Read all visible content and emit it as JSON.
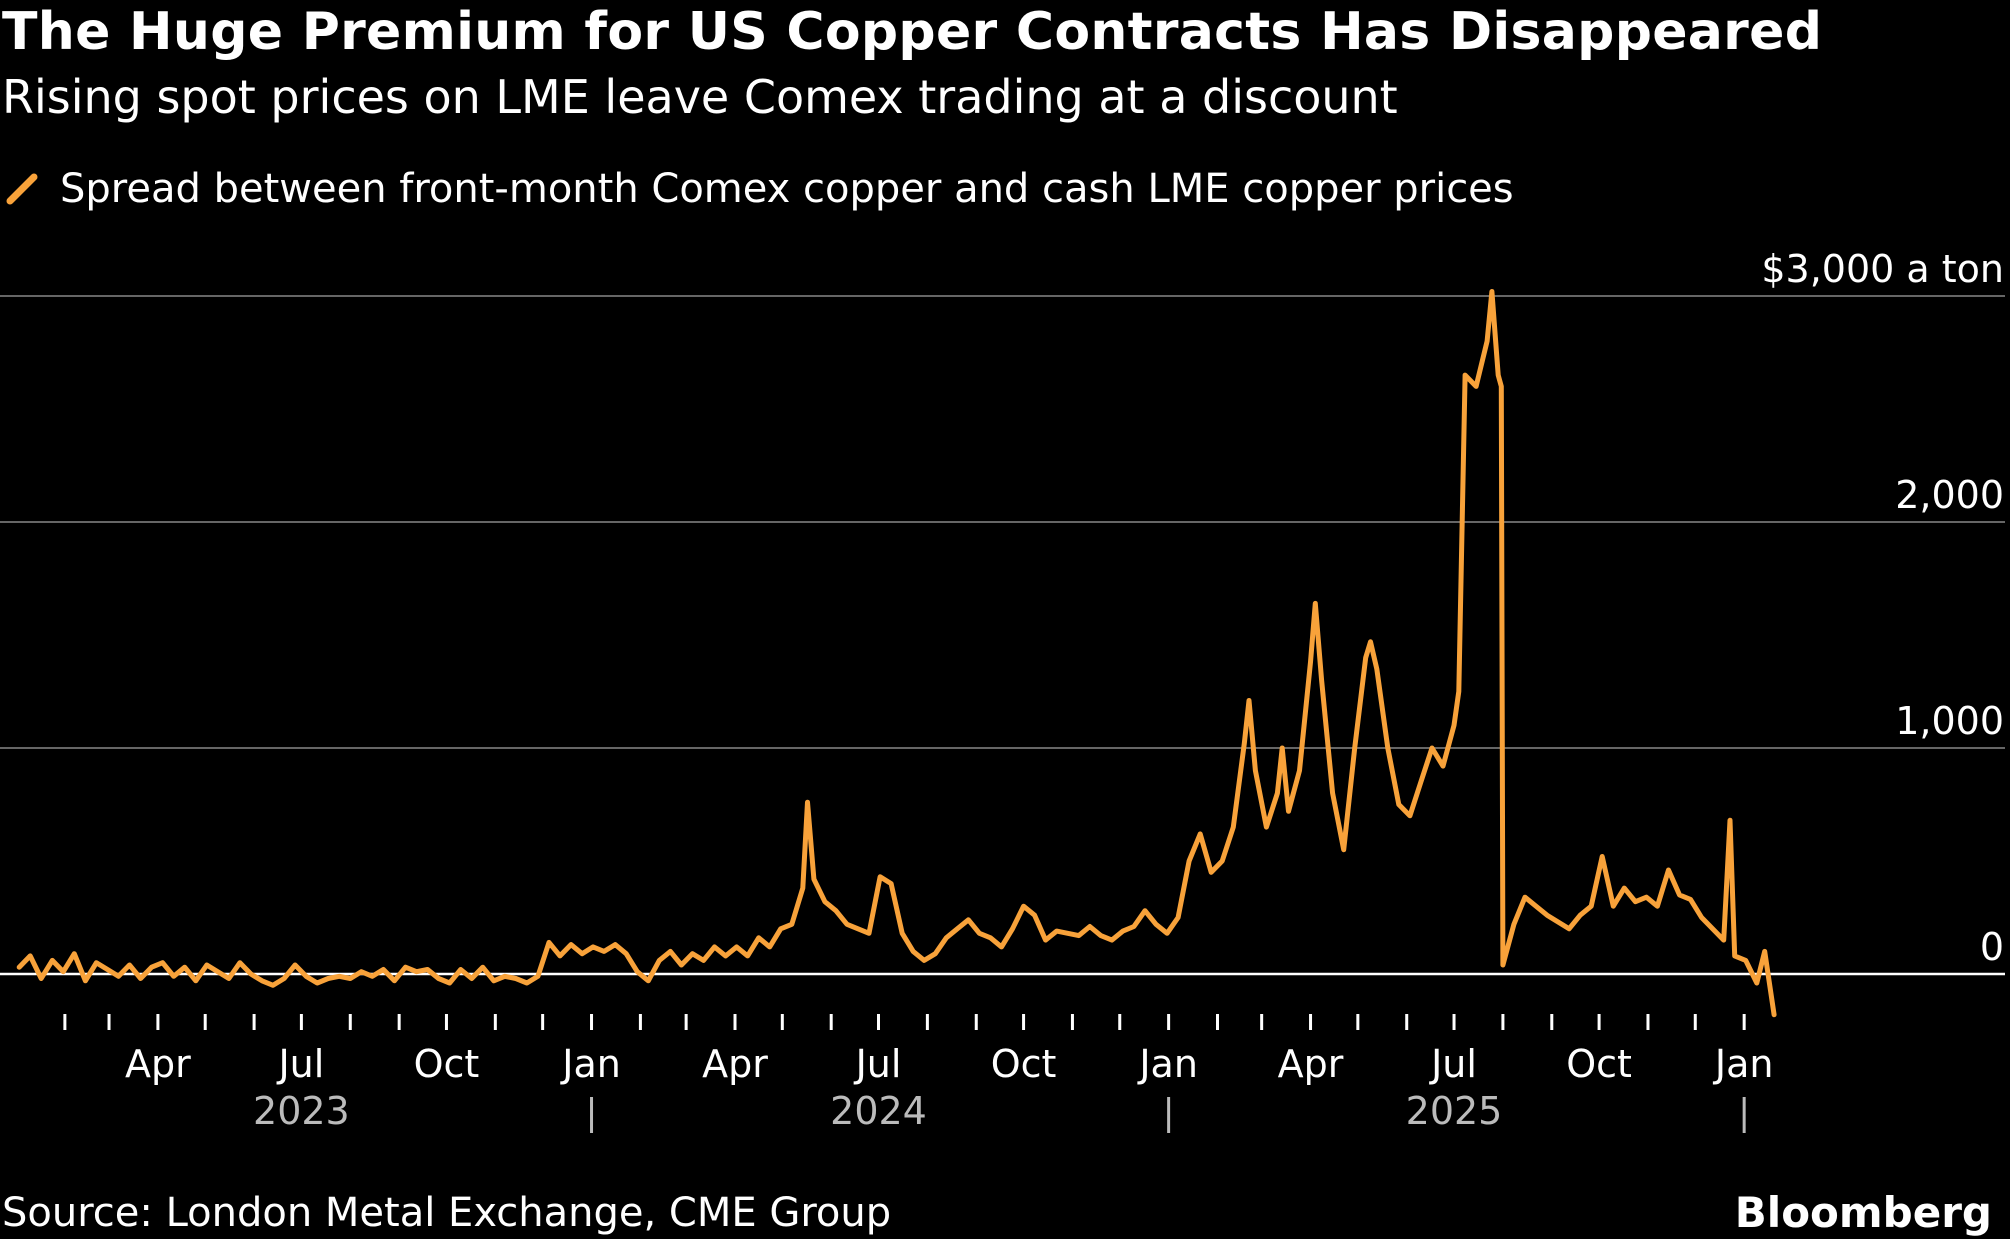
{
  "title": "The Huge Premium for US Copper Contracts Has Disappeared",
  "subtitle": "Rising spot prices on LME leave Comex trading at a discount",
  "source": "Source: London Metal Exchange, CME Group",
  "brand": "Bloomberg",
  "colors": {
    "background": "#000000",
    "line": "#F8A23A",
    "grid": "#666666",
    "zero_line": "#FFFFFF",
    "text": "#FFFFFF",
    "year_text": "#BBBBBB"
  },
  "chart_data": {
    "type": "line",
    "ylabel": "",
    "xlabel": "",
    "y_unit_label": "$3,000 a ton",
    "ylim": [
      -200,
      3000
    ],
    "yticks": [
      {
        "value": 3000,
        "label": "$3,000 a ton"
      },
      {
        "value": 2000,
        "label": "2,000"
      },
      {
        "value": 1000,
        "label": "1,000"
      },
      {
        "value": 0,
        "label": "0"
      }
    ],
    "xlim": [
      "2023-01-01",
      "2026-01-25"
    ],
    "month_ticks": [
      "2023-02-01",
      "2023-03-01",
      "2023-04-01",
      "2023-05-01",
      "2023-06-01",
      "2023-07-01",
      "2023-08-01",
      "2023-09-01",
      "2023-10-01",
      "2023-11-01",
      "2023-12-01",
      "2024-01-01",
      "2024-02-01",
      "2024-03-01",
      "2024-04-01",
      "2024-05-01",
      "2024-06-01",
      "2024-07-01",
      "2024-08-01",
      "2024-09-01",
      "2024-10-01",
      "2024-11-01",
      "2024-12-01",
      "2025-01-01",
      "2025-02-01",
      "2025-03-01",
      "2025-04-01",
      "2025-05-01",
      "2025-06-01",
      "2025-07-01",
      "2025-08-01",
      "2025-09-01",
      "2025-10-01",
      "2025-11-01",
      "2025-12-01",
      "2026-01-01"
    ],
    "month_labels": [
      {
        "date": "2023-04-01",
        "label": "Apr"
      },
      {
        "date": "2023-07-01",
        "label": "Jul"
      },
      {
        "date": "2023-10-01",
        "label": "Oct"
      },
      {
        "date": "2024-01-01",
        "label": "Jan"
      },
      {
        "date": "2024-04-01",
        "label": "Apr"
      },
      {
        "date": "2024-07-01",
        "label": "Jul"
      },
      {
        "date": "2024-10-01",
        "label": "Oct"
      },
      {
        "date": "2025-01-01",
        "label": "Jan"
      },
      {
        "date": "2025-04-01",
        "label": "Apr"
      },
      {
        "date": "2025-07-01",
        "label": "Jul"
      },
      {
        "date": "2025-10-01",
        "label": "Oct"
      },
      {
        "date": "2026-01-01",
        "label": "Jan"
      }
    ],
    "year_labels": [
      {
        "date": "2023-07-01",
        "label": "2023"
      },
      {
        "date": "2024-07-01",
        "label": "2024"
      },
      {
        "date": "2025-07-01",
        "label": "2025"
      }
    ],
    "year_separators": [
      "2024-01-01",
      "2025-01-01",
      "2026-01-01"
    ],
    "series": [
      {
        "name": "Spread between front-month Comex copper and cash LME copper prices",
        "points": [
          [
            "2023-01-03",
            30
          ],
          [
            "2023-01-10",
            80
          ],
          [
            "2023-01-17",
            -20
          ],
          [
            "2023-01-24",
            60
          ],
          [
            "2023-01-31",
            10
          ],
          [
            "2023-02-07",
            90
          ],
          [
            "2023-02-14",
            -30
          ],
          [
            "2023-02-21",
            50
          ],
          [
            "2023-02-28",
            20
          ],
          [
            "2023-03-07",
            -10
          ],
          [
            "2023-03-14",
            40
          ],
          [
            "2023-03-21",
            -20
          ],
          [
            "2023-03-28",
            30
          ],
          [
            "2023-04-04",
            50
          ],
          [
            "2023-04-11",
            -10
          ],
          [
            "2023-04-18",
            30
          ],
          [
            "2023-04-25",
            -30
          ],
          [
            "2023-05-02",
            40
          ],
          [
            "2023-05-09",
            10
          ],
          [
            "2023-05-16",
            -20
          ],
          [
            "2023-05-23",
            50
          ],
          [
            "2023-05-30",
            0
          ],
          [
            "2023-06-06",
            -30
          ],
          [
            "2023-06-13",
            -50
          ],
          [
            "2023-06-20",
            -20
          ],
          [
            "2023-06-27",
            40
          ],
          [
            "2023-07-04",
            -10
          ],
          [
            "2023-07-11",
            -40
          ],
          [
            "2023-07-18",
            -20
          ],
          [
            "2023-07-25",
            -10
          ],
          [
            "2023-08-01",
            -20
          ],
          [
            "2023-08-08",
            10
          ],
          [
            "2023-08-15",
            -10
          ],
          [
            "2023-08-22",
            20
          ],
          [
            "2023-08-29",
            -30
          ],
          [
            "2023-09-05",
            30
          ],
          [
            "2023-09-12",
            10
          ],
          [
            "2023-09-19",
            20
          ],
          [
            "2023-09-26",
            -20
          ],
          [
            "2023-10-03",
            -40
          ],
          [
            "2023-10-10",
            20
          ],
          [
            "2023-10-17",
            -20
          ],
          [
            "2023-10-24",
            30
          ],
          [
            "2023-10-31",
            -30
          ],
          [
            "2023-11-07",
            -10
          ],
          [
            "2023-11-14",
            -20
          ],
          [
            "2023-11-21",
            -40
          ],
          [
            "2023-11-28",
            -10
          ],
          [
            "2023-12-05",
            140
          ],
          [
            "2023-12-12",
            80
          ],
          [
            "2023-12-19",
            130
          ],
          [
            "2023-12-26",
            90
          ],
          [
            "2024-01-02",
            120
          ],
          [
            "2024-01-09",
            100
          ],
          [
            "2024-01-16",
            130
          ],
          [
            "2024-01-23",
            90
          ],
          [
            "2024-01-30",
            10
          ],
          [
            "2024-02-06",
            -30
          ],
          [
            "2024-02-13",
            60
          ],
          [
            "2024-02-20",
            100
          ],
          [
            "2024-02-27",
            40
          ],
          [
            "2024-03-05",
            90
          ],
          [
            "2024-03-12",
            60
          ],
          [
            "2024-03-19",
            120
          ],
          [
            "2024-03-26",
            80
          ],
          [
            "2024-04-02",
            120
          ],
          [
            "2024-04-09",
            80
          ],
          [
            "2024-04-16",
            160
          ],
          [
            "2024-04-23",
            120
          ],
          [
            "2024-04-30",
            200
          ],
          [
            "2024-05-07",
            220
          ],
          [
            "2024-05-14",
            380
          ],
          [
            "2024-05-17",
            760
          ],
          [
            "2024-05-21",
            420
          ],
          [
            "2024-05-28",
            320
          ],
          [
            "2024-06-04",
            280
          ],
          [
            "2024-06-11",
            220
          ],
          [
            "2024-06-18",
            200
          ],
          [
            "2024-06-25",
            180
          ],
          [
            "2024-07-02",
            430
          ],
          [
            "2024-07-09",
            400
          ],
          [
            "2024-07-16",
            180
          ],
          [
            "2024-07-23",
            100
          ],
          [
            "2024-07-30",
            60
          ],
          [
            "2024-08-06",
            90
          ],
          [
            "2024-08-13",
            160
          ],
          [
            "2024-08-20",
            200
          ],
          [
            "2024-08-27",
            240
          ],
          [
            "2024-09-03",
            180
          ],
          [
            "2024-09-10",
            160
          ],
          [
            "2024-09-17",
            120
          ],
          [
            "2024-09-24",
            200
          ],
          [
            "2024-10-01",
            300
          ],
          [
            "2024-10-08",
            260
          ],
          [
            "2024-10-15",
            150
          ],
          [
            "2024-10-22",
            190
          ],
          [
            "2024-10-29",
            180
          ],
          [
            "2024-11-05",
            170
          ],
          [
            "2024-11-12",
            210
          ],
          [
            "2024-11-19",
            170
          ],
          [
            "2024-11-26",
            150
          ],
          [
            "2024-12-03",
            190
          ],
          [
            "2024-12-10",
            210
          ],
          [
            "2024-12-17",
            280
          ],
          [
            "2024-12-24",
            220
          ],
          [
            "2024-12-31",
            180
          ],
          [
            "2025-01-07",
            250
          ],
          [
            "2025-01-14",
            500
          ],
          [
            "2025-01-21",
            620
          ],
          [
            "2025-01-28",
            450
          ],
          [
            "2025-02-04",
            500
          ],
          [
            "2025-02-11",
            650
          ],
          [
            "2025-02-18",
            1020
          ],
          [
            "2025-02-21",
            1210
          ],
          [
            "2025-02-25",
            900
          ],
          [
            "2025-03-04",
            650
          ],
          [
            "2025-03-11",
            800
          ],
          [
            "2025-03-14",
            1000
          ],
          [
            "2025-03-18",
            720
          ],
          [
            "2025-03-25",
            900
          ],
          [
            "2025-04-01",
            1380
          ],
          [
            "2025-04-04",
            1640
          ],
          [
            "2025-04-08",
            1300
          ],
          [
            "2025-04-15",
            800
          ],
          [
            "2025-04-22",
            550
          ],
          [
            "2025-04-29",
            1000
          ],
          [
            "2025-05-06",
            1400
          ],
          [
            "2025-05-09",
            1470
          ],
          [
            "2025-05-13",
            1350
          ],
          [
            "2025-05-20",
            1000
          ],
          [
            "2025-05-27",
            750
          ],
          [
            "2025-06-03",
            700
          ],
          [
            "2025-06-10",
            850
          ],
          [
            "2025-06-17",
            1000
          ],
          [
            "2025-06-24",
            920
          ],
          [
            "2025-07-01",
            1100
          ],
          [
            "2025-07-04",
            1250
          ],
          [
            "2025-07-08",
            2650
          ],
          [
            "2025-07-15",
            2600
          ],
          [
            "2025-07-22",
            2800
          ],
          [
            "2025-07-25",
            3020
          ],
          [
            "2025-07-29",
            2650
          ],
          [
            "2025-07-31",
            2600
          ],
          [
            "2025-08-01",
            40
          ],
          [
            "2025-08-08",
            220
          ],
          [
            "2025-08-15",
            340
          ],
          [
            "2025-08-22",
            300
          ],
          [
            "2025-08-29",
            260
          ],
          [
            "2025-09-05",
            230
          ],
          [
            "2025-09-12",
            200
          ],
          [
            "2025-09-19",
            260
          ],
          [
            "2025-09-26",
            300
          ],
          [
            "2025-10-03",
            520
          ],
          [
            "2025-10-10",
            300
          ],
          [
            "2025-10-17",
            380
          ],
          [
            "2025-10-24",
            320
          ],
          [
            "2025-10-31",
            340
          ],
          [
            "2025-11-07",
            300
          ],
          [
            "2025-11-14",
            460
          ],
          [
            "2025-11-21",
            350
          ],
          [
            "2025-11-28",
            330
          ],
          [
            "2025-12-05",
            250
          ],
          [
            "2025-12-12",
            200
          ],
          [
            "2025-12-19",
            150
          ],
          [
            "2025-12-23",
            680
          ],
          [
            "2025-12-26",
            80
          ],
          [
            "2026-01-02",
            60
          ],
          [
            "2026-01-09",
            -40
          ],
          [
            "2026-01-14",
            100
          ],
          [
            "2026-01-20",
            -180
          ]
        ]
      }
    ]
  }
}
